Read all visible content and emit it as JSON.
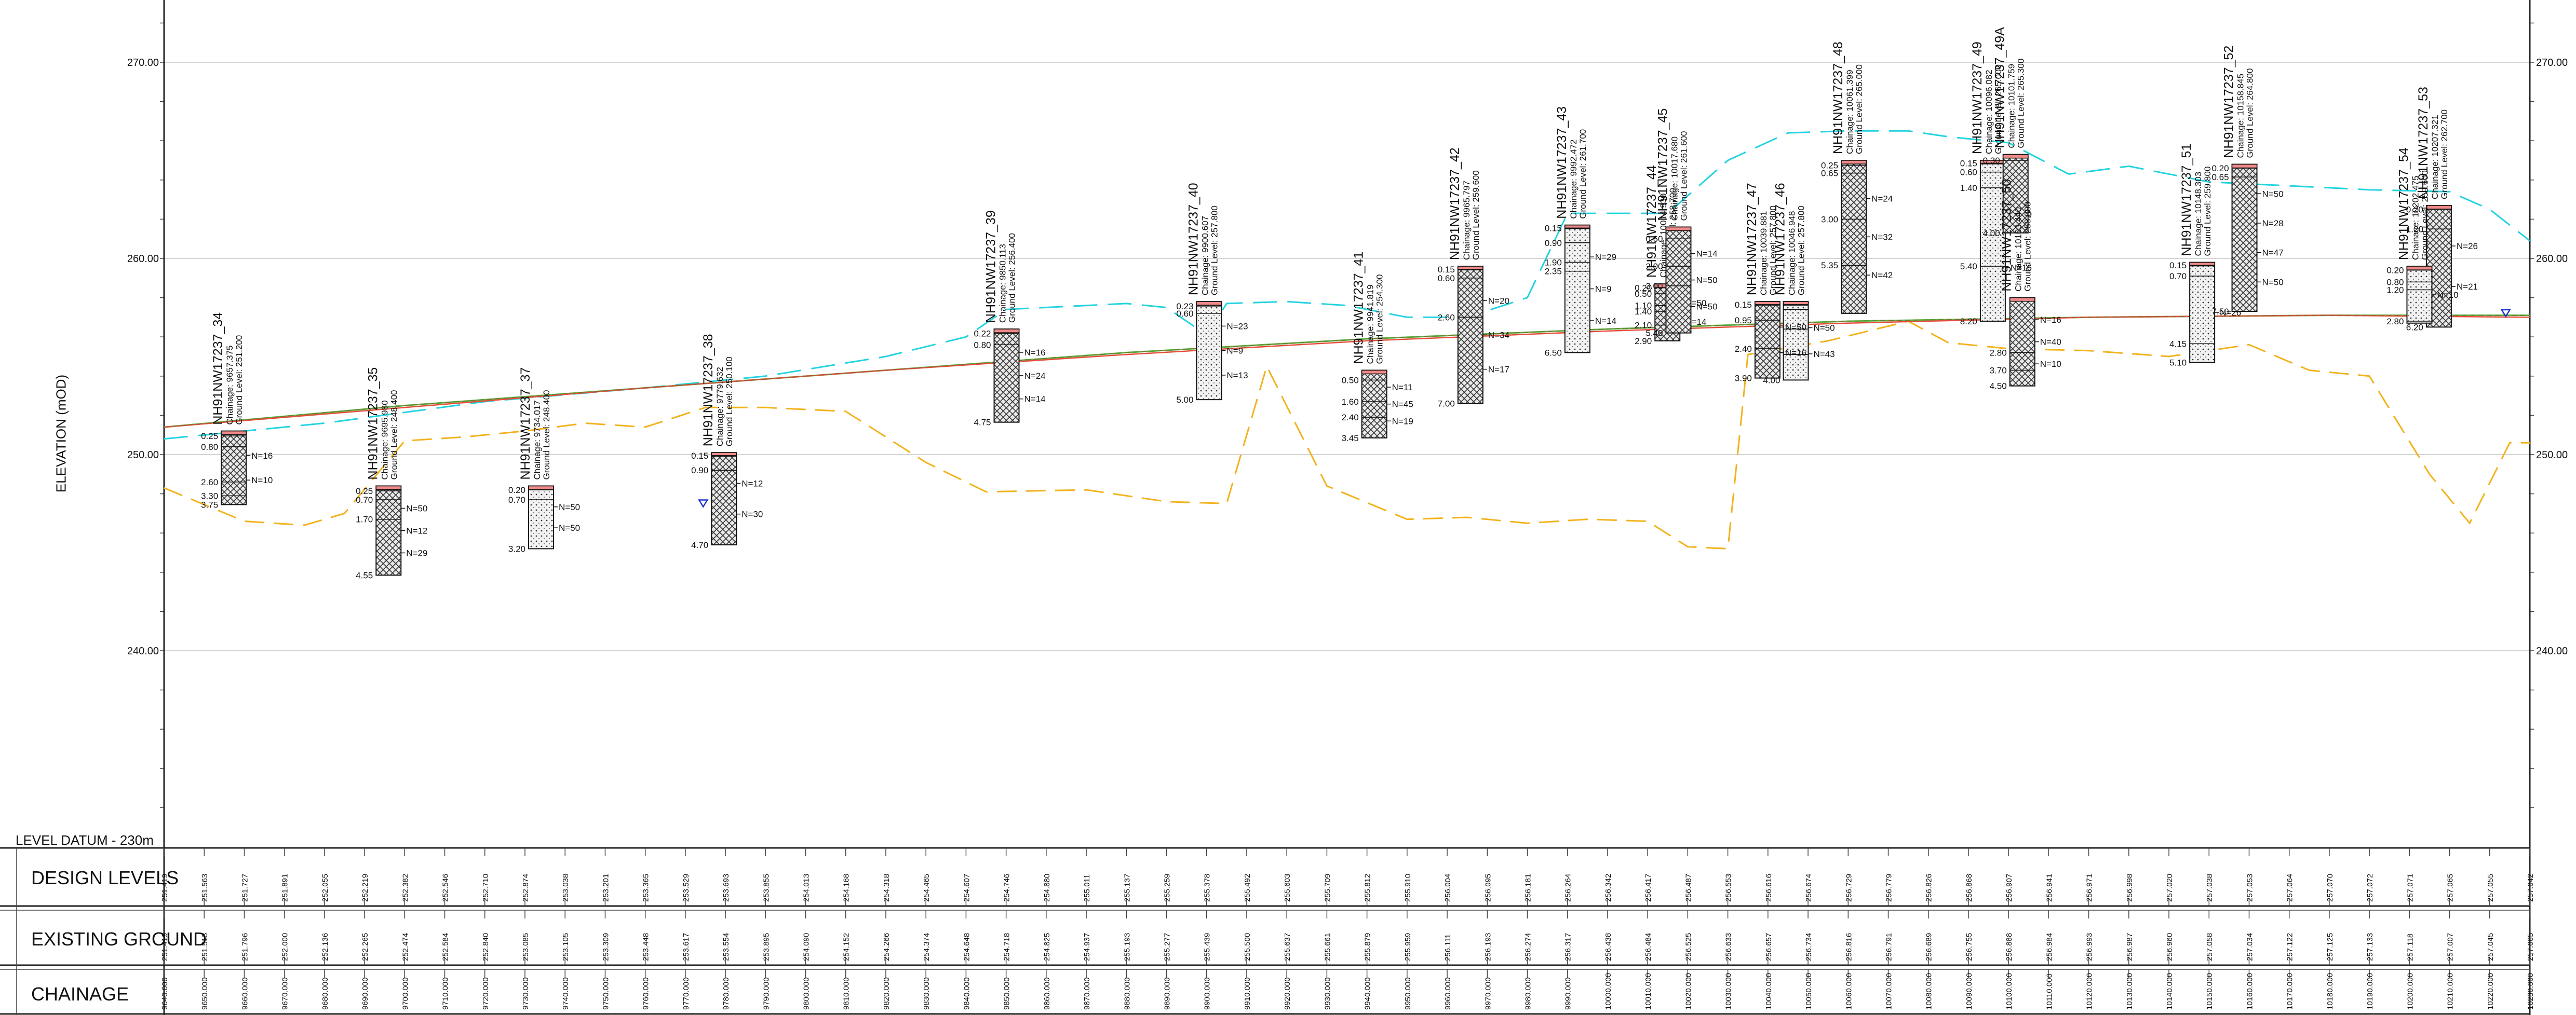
{
  "axis": {
    "ylabel": "ELEVATION (mOD)",
    "yticks": [
      "270.00",
      "260.00",
      "250.00",
      "240.00"
    ],
    "ylim": [
      230,
      273
    ],
    "xlim": [
      9640,
      10230
    ]
  },
  "table": {
    "datum": "LEVEL DATUM - 230m",
    "rows": [
      "DESIGN LEVELS",
      "EXISTING GROUND",
      "CHAINAGE"
    ],
    "chainage": [
      "9640.000",
      "9650.000",
      "9660.000",
      "9670.000",
      "9680.000",
      "9690.000",
      "9700.000",
      "9710.000",
      "9720.000",
      "9730.000",
      "9740.000",
      "9750.000",
      "9760.000",
      "9770.000",
      "9780.000",
      "9790.000",
      "9800.000",
      "9810.000",
      "9820.000",
      "9830.000",
      "9840.000",
      "9850.000",
      "9860.000",
      "9870.000",
      "9880.000",
      "9890.000",
      "9900.000",
      "9910.000",
      "9920.000",
      "9930.000",
      "9940.000",
      "9950.000",
      "9960.000",
      "9970.000",
      "9980.000",
      "9990.000",
      "10000.000",
      "10010.000",
      "10020.000",
      "10030.000",
      "10040.000",
      "10050.000",
      "10060.000",
      "10070.000",
      "10080.000",
      "10090.000",
      "10100.000",
      "10110.000",
      "10120.000",
      "10130.000",
      "10140.000",
      "10150.000",
      "10160.000",
      "10170.000",
      "10180.000",
      "10190.000",
      "10200.000",
      "10210.000",
      "10220.000",
      "10230.000"
    ],
    "design": [
      "251.419",
      "251.563",
      "251.727",
      "251.891",
      "252.055",
      "252.219",
      "252.382",
      "252.546",
      "252.710",
      "252.874",
      "253.038",
      "253.201",
      "253.365",
      "253.529",
      "253.693",
      "253.855",
      "254.013",
      "254.168",
      "254.318",
      "254.465",
      "254.607",
      "254.746",
      "254.880",
      "255.011",
      "255.137",
      "255.259",
      "255.378",
      "255.492",
      "255.603",
      "255.709",
      "255.812",
      "255.910",
      "256.004",
      "256.095",
      "256.181",
      "256.264",
      "256.342",
      "256.417",
      "256.487",
      "256.553",
      "256.616",
      "256.674",
      "256.729",
      "256.779",
      "256.826",
      "256.868",
      "256.907",
      "256.941",
      "256.971",
      "256.998",
      "257.020",
      "257.038",
      "257.053",
      "257.064",
      "257.070",
      "257.072",
      "257.071",
      "257.065",
      "257.055",
      "257.042"
    ],
    "existing": [
      "251.419",
      "251.513",
      "251.796",
      "252.000",
      "252.136",
      "252.265",
      "252.474",
      "252.584",
      "252.840",
      "253.085",
      "253.105",
      "253.309",
      "253.448",
      "253.617",
      "253.554",
      "253.895",
      "254.090",
      "254.152",
      "254.266",
      "254.374",
      "254.648",
      "254.718",
      "254.825",
      "254.937",
      "255.193",
      "255.277",
      "255.439",
      "255.500",
      "255.637",
      "255.661",
      "255.879",
      "255.959",
      "256.111",
      "256.193",
      "256.274",
      "256.317",
      "256.438",
      "256.484",
      "256.525",
      "256.633",
      "256.657",
      "256.734",
      "256.816",
      "256.791",
      "256.689",
      "256.755",
      "256.888",
      "256.984",
      "256.993",
      "256.987",
      "256.960",
      "257.058",
      "257.034",
      "257.122",
      "257.125",
      "257.133",
      "257.118",
      "257.007",
      "257.045",
      "257.065"
    ]
  },
  "boreholes": [
    {
      "name": "NH91NW17237_34",
      "chainage": "Chainage: 9657.375",
      "ground": "Ground Level: 251.200",
      "gl": 251.2,
      "depth": 3.75,
      "marks": [
        "0.25",
        "0.80",
        "2.60",
        "3.30",
        "3.75"
      ],
      "spt": [
        "N=16",
        "N=10"
      ]
    },
    {
      "name": "NH91NW17237_35",
      "chainage": "Chainage: 9695.980",
      "ground": "Ground Level: 248.400",
      "gl": 248.4,
      "depth": 4.55,
      "marks": [
        "0.25",
        "0.70",
        "1.70",
        "4.55"
      ],
      "spt": [
        "N=50",
        "N=12",
        "N=29"
      ]
    },
    {
      "name": "NH91NW17237_37",
      "chainage": "Chainage: 9734.017",
      "ground": "Ground Level: 248.400",
      "gl": 248.4,
      "depth": 3.2,
      "marks": [
        "0.20",
        "0.70",
        "3.20"
      ],
      "spt": [
        "N=50",
        "N=50"
      ]
    },
    {
      "name": "NH91NW17237_38",
      "chainage": "Chainage: 9779.632",
      "ground": "Ground Level: 250.100",
      "gl": 250.1,
      "depth": 4.7,
      "marks": [
        "0.15",
        "0.90",
        "4.70"
      ],
      "spt": [
        "N=12",
        "N=30"
      ]
    },
    {
      "name": "NH91NW17237_39",
      "chainage": "Chainage: 9850.113",
      "ground": "Ground Level: 256.400",
      "gl": 256.4,
      "depth": 4.75,
      "marks": [
        "0.22",
        "0.80",
        "4.75"
      ],
      "spt": [
        "N=16",
        "N=24",
        "N=14"
      ]
    },
    {
      "name": "NH91NW17237_40",
      "chainage": "Chainage: 9900.607",
      "ground": "Ground Level: 257.800",
      "gl": 257.8,
      "depth": 5.0,
      "marks": [
        "0.23",
        "0.60",
        "5.00"
      ],
      "spt": [
        "N=23",
        "N=9",
        "N=13"
      ]
    },
    {
      "name": "NH91NW17237_41",
      "chainage": "Chainage: 9941.819",
      "ground": "Ground Level: 254.300",
      "gl": 254.3,
      "depth": 3.45,
      "marks": [
        "0.50",
        "1.60",
        "2.40",
        "3.45"
      ],
      "spt": [
        "N=11",
        "N=45",
        "N=19"
      ]
    },
    {
      "name": "NH91NW17237_42",
      "chainage": "Chainage: 9965.797",
      "ground": "Ground Level: 259.600",
      "gl": 259.6,
      "depth": 7.0,
      "marks": [
        "0.15",
        "0.60",
        "2.60",
        "7.00"
      ],
      "spt": [
        "N=20",
        "N=34",
        "N=17"
      ]
    },
    {
      "name": "NH91NW17237_43",
      "chainage": "Chainage: 9992.472",
      "ground": "Ground Level: 261.700",
      "gl": 261.7,
      "depth": 6.5,
      "marks": [
        "0.15",
        "0.90",
        "1.90",
        "2.35",
        "6.50"
      ],
      "spt": [
        "N=29",
        "N=9",
        "N=14"
      ]
    },
    {
      "name": "NH91NW17237_44",
      "chainage": "Chainage: 10014.930",
      "ground": "Ground Level: 258.700",
      "gl": 258.7,
      "depth": 2.9,
      "marks": [
        "0.20",
        "0.50",
        "1.10",
        "1.40",
        "2.10",
        "2.90"
      ],
      "spt": [
        "N=50",
        "N=14"
      ]
    },
    {
      "name": "NH91NW17237_45",
      "chainage": "Chainage: 10017.680",
      "ground": "Ground Level: 261.600",
      "gl": 261.6,
      "depth": 5.4,
      "marks": [
        "0.60",
        "2.00",
        "3.00",
        "5.40"
      ],
      "spt": [
        "N=14",
        "N=50",
        "N=50"
      ]
    },
    {
      "name": "NH91NW17237_46",
      "chainage": "Chainage: 10046.948",
      "ground": "Ground Level: 257.800",
      "gl": 257.8,
      "depth": 4.0,
      "marks": [
        "0.15",
        "0.40",
        "1.40",
        "2.70",
        "4.00"
      ],
      "spt": [
        "N=50",
        "N=43"
      ]
    },
    {
      "name": "NH91NW17237_47",
      "chainage": "Chainage: 10039.881",
      "ground": "Ground Level: 257.800",
      "gl": 257.8,
      "depth": 3.9,
      "marks": [
        "0.15",
        "0.95",
        "2.40",
        "3.90"
      ],
      "spt": [
        "N=50",
        "N=16"
      ]
    },
    {
      "name": "NH91NW17237_48",
      "chainage": "Chainage: 10061.399",
      "ground": "Ground Level: 265.000",
      "gl": 265.0,
      "depth": 7.8,
      "marks": [
        "0.25",
        "0.65",
        "3.00",
        "5.35"
      ],
      "spt": [
        "N=24",
        "N=32",
        "N=42"
      ]
    },
    {
      "name": "NH91NW17237_49",
      "chainage": "Chainage: 10096.082",
      "ground": "Ground Level: 265.000",
      "gl": 265.0,
      "depth": 8.2,
      "marks": [
        "0.15",
        "0.60",
        "1.40",
        "5.40",
        "8.20"
      ],
      "spt": [
        "N=50",
        "N=16"
      ]
    },
    {
      "name": "NH91NW17237_49A",
      "chainage": "Chainage: 10101.759",
      "ground": "Ground Level: 265.300",
      "gl": 265.3,
      "depth": 4.0,
      "marks": [
        "0.30",
        "4.00"
      ],
      "spt": []
    },
    {
      "name": "NH91NW17237_50",
      "chainage": "Chainage: 10103.440",
      "ground": "Ground Level: 258.000",
      "gl": 258.0,
      "depth": 4.5,
      "marks": [
        "2.80",
        "3.70",
        "4.50"
      ],
      "spt": [
        "N=16",
        "N=40",
        "N=10"
      ]
    },
    {
      "name": "NH91NW17237_51",
      "chainage": "Chainage: 10148.303",
      "ground": "Ground Level: 259.800",
      "gl": 259.8,
      "depth": 5.1,
      "marks": [
        "0.15",
        "0.70",
        "4.15",
        "5.10"
      ],
      "spt": [
        "N=26"
      ]
    },
    {
      "name": "NH91NW17237_52",
      "chainage": "Chainage: 10158.845",
      "ground": "Ground Level: 264.800",
      "gl": 264.8,
      "depth": 7.5,
      "marks": [
        "0.20",
        "0.65",
        "7.50"
      ],
      "spt": [
        "N=50",
        "N=28",
        "N=47",
        "N=50"
      ]
    },
    {
      "name": "NH91NW17237_53",
      "chainage": "Chainage: 10207.321",
      "ground": "Ground Level: 262.700",
      "gl": 262.7,
      "depth": 6.2,
      "marks": [
        "0.20",
        "1.20",
        "6.20"
      ],
      "spt": [
        "N=26",
        "N=21"
      ]
    },
    {
      "name": "NH91NW17237_54",
      "chainage": "Chainage: 10202.475",
      "ground": "Ground Level: 259.600",
      "gl": 259.6,
      "depth": 2.9,
      "marks": [
        "0.20",
        "0.80",
        "1.20",
        "2.80"
      ],
      "spt": [
        "N=10"
      ]
    }
  ],
  "profiles": {
    "colors": {
      "design": "#e74c3c",
      "existing": "#58b03f",
      "cyan": "#22d3e0",
      "amber": "#f2b21b"
    },
    "design": [
      [
        9640,
        251.4
      ],
      [
        9700,
        252.4
      ],
      [
        9760,
        253.4
      ],
      [
        9820,
        254.3
      ],
      [
        9880,
        255.1
      ],
      [
        9940,
        255.8
      ],
      [
        10000,
        256.3
      ],
      [
        10060,
        256.7
      ],
      [
        10120,
        257.0
      ],
      [
        10180,
        257.1
      ],
      [
        10230,
        257.0
      ]
    ],
    "existing": [
      [
        9640,
        251.4
      ],
      [
        9700,
        252.5
      ],
      [
        9760,
        253.4
      ],
      [
        9820,
        254.3
      ],
      [
        9880,
        255.2
      ],
      [
        9940,
        255.9
      ],
      [
        10000,
        256.4
      ],
      [
        10060,
        256.8
      ],
      [
        10120,
        257.0
      ],
      [
        10180,
        257.1
      ],
      [
        10230,
        257.1
      ]
    ],
    "cyan": [
      [
        9640,
        250.8
      ],
      [
        9680,
        251.6
      ],
      [
        9720,
        252.7
      ],
      [
        9760,
        253.4
      ],
      [
        9790,
        254.0
      ],
      [
        9820,
        255.0
      ],
      [
        9840,
        256.0
      ],
      [
        9850,
        257.4
      ],
      [
        9870,
        257.6
      ],
      [
        9880,
        257.7
      ],
      [
        9890,
        257.5
      ],
      [
        9900,
        256.1
      ],
      [
        9905,
        257.7
      ],
      [
        9920,
        257.8
      ],
      [
        9935,
        257.6
      ],
      [
        9950,
        257.0
      ],
      [
        9965,
        257.0
      ],
      [
        9980,
        258.0
      ],
      [
        9990,
        262.3
      ],
      [
        10000,
        262.3
      ],
      [
        10015,
        262.3
      ],
      [
        10030,
        265.0
      ],
      [
        10045,
        266.4
      ],
      [
        10060,
        266.5
      ],
      [
        10075,
        266.5
      ],
      [
        10085,
        266.2
      ],
      [
        10100,
        265.9
      ],
      [
        10115,
        264.3
      ],
      [
        10130,
        264.7
      ],
      [
        10150,
        263.9
      ],
      [
        10170,
        263.7
      ],
      [
        10190,
        263.5
      ],
      [
        10210,
        263.4
      ],
      [
        10220,
        262.5
      ],
      [
        10230,
        260.9
      ]
    ],
    "amber": [
      [
        9640,
        248.3
      ],
      [
        9660,
        246.6
      ],
      [
        9675,
        246.4
      ],
      [
        9685,
        247.0
      ],
      [
        9700,
        250.7
      ],
      [
        9715,
        250.9
      ],
      [
        9730,
        251.2
      ],
      [
        9745,
        251.6
      ],
      [
        9760,
        251.4
      ],
      [
        9775,
        252.4
      ],
      [
        9790,
        252.4
      ],
      [
        9810,
        252.2
      ],
      [
        9830,
        249.6
      ],
      [
        9845,
        248.1
      ],
      [
        9870,
        248.2
      ],
      [
        9890,
        247.6
      ],
      [
        9905,
        247.5
      ],
      [
        9915,
        254.5
      ],
      [
        9930,
        248.4
      ],
      [
        9950,
        246.7
      ],
      [
        9965,
        246.8
      ],
      [
        9980,
        246.5
      ],
      [
        9995,
        246.7
      ],
      [
        10010,
        246.6
      ],
      [
        10020,
        245.3
      ],
      [
        10030,
        245.2
      ],
      [
        10035,
        255.1
      ],
      [
        10055,
        255.8
      ],
      [
        10075,
        256.8
      ],
      [
        10085,
        255.7
      ],
      [
        10100,
        255.4
      ],
      [
        10120,
        255.3
      ],
      [
        10140,
        255.0
      ],
      [
        10160,
        255.6
      ],
      [
        10175,
        254.3
      ],
      [
        10190,
        254.0
      ],
      [
        10205,
        249.0
      ],
      [
        10215,
        246.5
      ],
      [
        10225,
        250.6
      ],
      [
        10230,
        250.6
      ]
    ]
  }
}
